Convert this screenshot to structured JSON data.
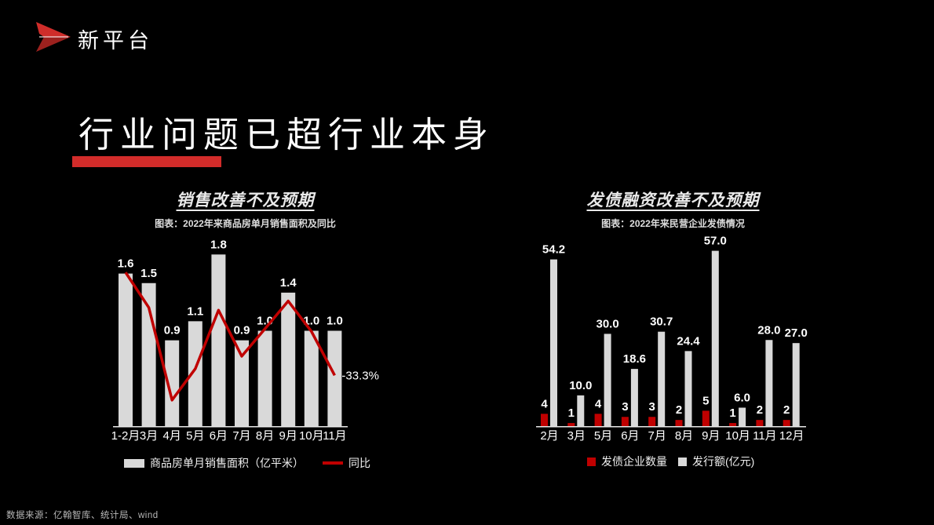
{
  "brand": {
    "name": "新平台",
    "logo_icon": "paper-plane-icon",
    "logo_color": "#c9302c"
  },
  "page_title": {
    "text": "行业问题已超行业本身",
    "underline_color": "#d22c2a"
  },
  "footer": {
    "source": "数据来源：亿翰智库、统计局、wind"
  },
  "colors": {
    "background": "#000000",
    "bar_gray": "#d9d9d9",
    "accent_red": "#c00000",
    "axis_line": "#e8e8e8",
    "text_white": "#ffffff"
  },
  "chart_data": [
    {
      "type": "bar",
      "title": "销售改善不及预期",
      "subtitle": "图表：2022年来商品房单月销售面积及同比",
      "categories": [
        "1-2月",
        "3月",
        "4月",
        "5月",
        "6月",
        "7月",
        "8月",
        "9月",
        "10月",
        "11月"
      ],
      "series": [
        {
          "name": "商品房单月销售面积（亿平米）",
          "type": "bar",
          "color": "#d9d9d9",
          "values": [
            1.6,
            1.5,
            0.9,
            1.1,
            1.8,
            0.9,
            1.0,
            1.4,
            1.0,
            1.0
          ],
          "labels": [
            "1.6",
            "1.5",
            "0.9",
            "1.1",
            "1.8",
            "0.9",
            "1.0",
            "1.4",
            "1.0",
            "1.0"
          ]
        },
        {
          "name": "同比",
          "type": "line",
          "color": "#c00000",
          "values_pct_estimated": [
            -9.6,
            -17.7,
            -39.0,
            -31.8,
            -18.3,
            -28.9,
            -22.6,
            -16.2,
            -23.2,
            -33.3
          ],
          "end_label": "-33.3%"
        }
      ],
      "ylim": [
        0,
        2.0
      ],
      "y2lim": [
        0,
        -45
      ],
      "grid": false,
      "legend_position": "bottom"
    },
    {
      "type": "bar",
      "title": "发债融资改善不及预期",
      "subtitle": "图表：2022年来民营企业发债情况",
      "categories": [
        "2月",
        "3月",
        "5月",
        "6月",
        "7月",
        "8月",
        "9月",
        "10月",
        "11月",
        "12月"
      ],
      "series": [
        {
          "name": "发债企业数量",
          "type": "bar",
          "color": "#c00000",
          "values": [
            4,
            1,
            4,
            3,
            3,
            2,
            5,
            1,
            2,
            2
          ],
          "labels": [
            "4",
            "1",
            "4",
            "3",
            "3",
            "2",
            "5",
            "1",
            "2",
            "2"
          ]
        },
        {
          "name": "发行额(亿元)",
          "type": "bar",
          "color": "#d9d9d9",
          "values": [
            54.2,
            10.0,
            30.0,
            18.6,
            30.7,
            24.4,
            57.0,
            6.0,
            28.0,
            27.0
          ],
          "labels": [
            "54.2",
            "10.0",
            "30.0",
            "18.6",
            "30.7",
            "24.4",
            "57.0",
            "6.0",
            "28.0",
            "27.0"
          ]
        }
      ],
      "ylim": [
        0,
        62
      ],
      "grid": false,
      "legend_position": "bottom"
    }
  ]
}
